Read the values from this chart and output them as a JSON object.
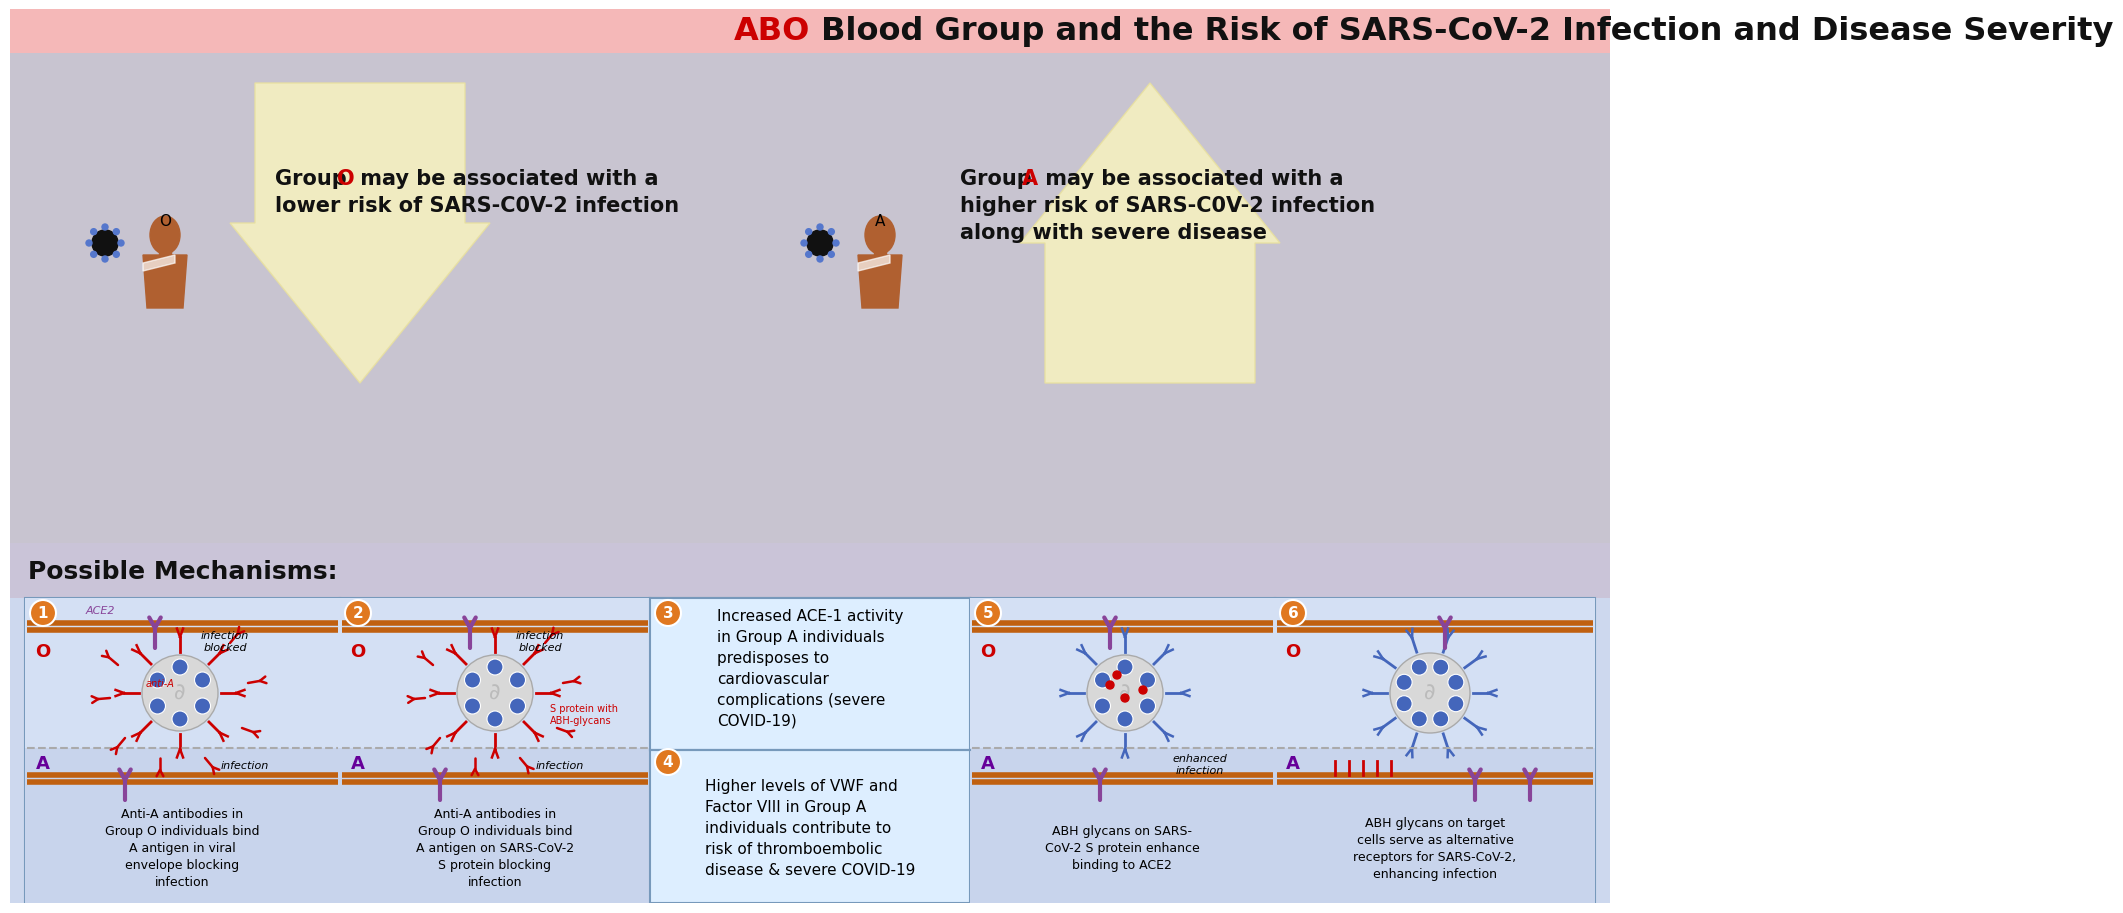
{
  "title_prefix": "ABO",
  "title_rest": " Blood Group and the Risk of SARS-CoV-2 Infection and Disease Severity",
  "title_color_prefix": "#CC0000",
  "title_color_rest": "#111111",
  "title_bg": "#f5b8b8",
  "top_section_bg": "#c8c4d0",
  "mechanisms_strip_bg": "#cac4d8",
  "panel_bg": "#cdd8ee",
  "orange_circle": "#e07820",
  "group_o_color": "#CC0000",
  "group_a_color": "#CC0000",
  "person_color": "#b06030",
  "virus_body": "#d8d8d8",
  "virus_body_ec": "#aaaaaa",
  "virus_spike_red": "#CC0000",
  "virus_spike_blue": "#4466bb",
  "ace2_color": "#884499",
  "membrane_color": "#c06010",
  "dashed_line_color": "#aaaaaa",
  "panel_border": "#7799bb",
  "arrow_down_color": "#f5f0c0",
  "arrow_up_color": "#f5f0c0",
  "small_virus_body": "#222222",
  "small_virus_ring": "#5577cc",
  "text_black": "#111111",
  "text_italic_dark": "#111111",
  "purple_A": "#660099",
  "section34_bg": "#ddeeff"
}
